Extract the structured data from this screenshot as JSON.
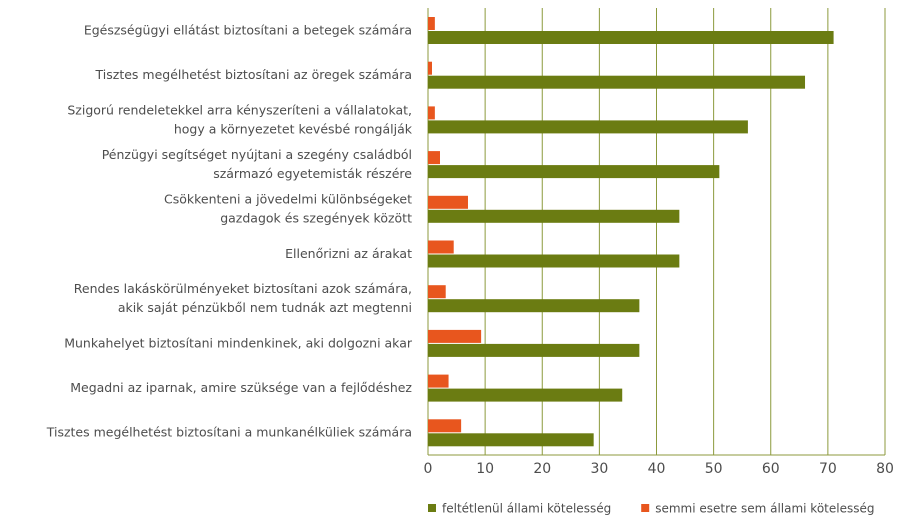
{
  "chart_data": {
    "type": "bar",
    "orientation": "horizontal",
    "categories": [
      [
        "Egészségügyi ellátást biztosítani a betegek számára"
      ],
      [
        "Tisztes megélhetést biztosítani az öregek számára"
      ],
      [
        "Szigorú rendeletekkel arra kényszeríteni a vállalatokat,",
        "hogy a környezetet kevésbé rongálják"
      ],
      [
        "Pénzügyi segítséget nyújtani a szegény családból",
        "származó egyetemisták részére"
      ],
      [
        "Csökkenteni a jövedelmi különbségeket",
        "gazdagok és szegények között"
      ],
      [
        "Ellenőrizni az árakat"
      ],
      [
        "Rendes lakáskörülményeket biztosítani azok számára,",
        "akik saját pénzükből nem tudnák azt megtenni"
      ],
      [
        "Munkahelyet biztosítani mindenkinek, aki dolgozni akar"
      ],
      [
        "Megadni az iparnak, amire szüksége van a fejlődéshez"
      ],
      [
        "Tisztes megélhetést biztosítani a munkanélküliek számára"
      ]
    ],
    "series": [
      {
        "name": "feltétlenül állami kötelesség",
        "color": "#6b7c12",
        "values": [
          71,
          66,
          56,
          51,
          44,
          44,
          37,
          37,
          34,
          29
        ]
      },
      {
        "name": "semmi esetre sem állami kötelesség",
        "color": "#e8561e",
        "values": [
          1.2,
          0.7,
          1.2,
          2.1,
          7,
          4.5,
          3.1,
          9.3,
          3.6,
          5.8
        ]
      }
    ],
    "xlim": [
      0,
      80
    ],
    "xticks": [
      0,
      10,
      20,
      30,
      40,
      50,
      60,
      70,
      80
    ],
    "grid": true,
    "legend": "bottom"
  }
}
